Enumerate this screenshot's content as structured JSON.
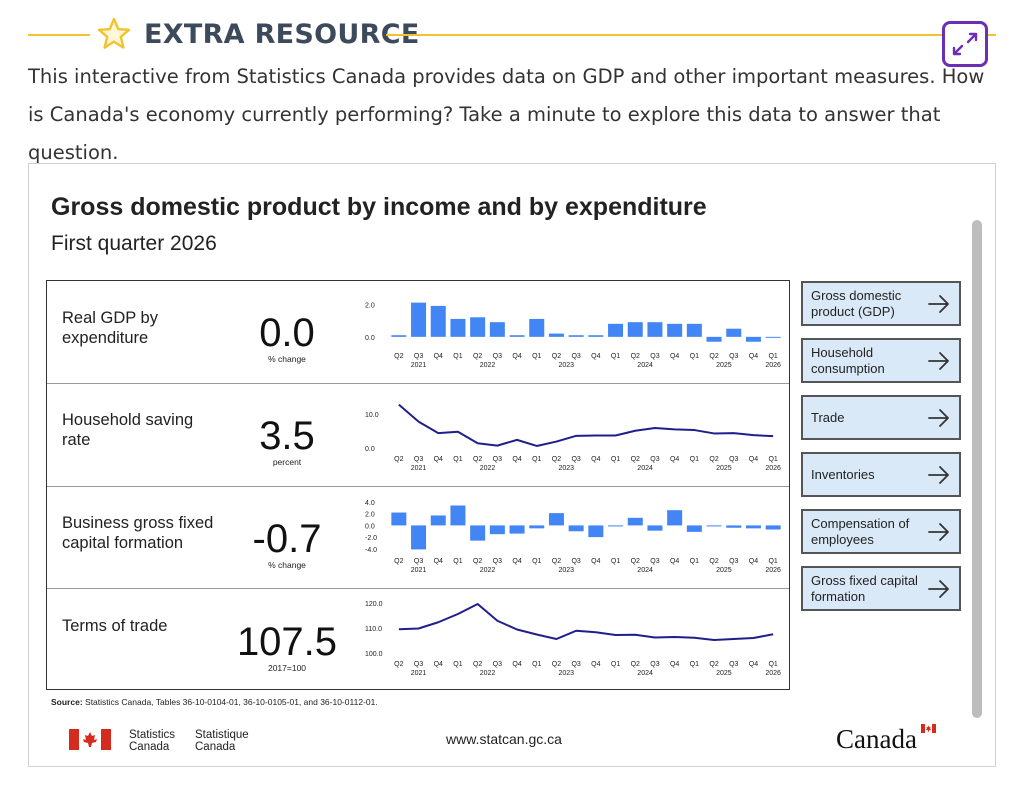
{
  "header": {
    "title": "EXTRA RESOURCE",
    "icons": {
      "star": "star-icon",
      "expand": "collapse-arrows-icon"
    },
    "colors": {
      "rule": "#f2c230",
      "expand_border": "#6b2fb3"
    }
  },
  "intro": "This interactive from Statistics Canada provides data on GDP and other important measures. How is Canada's economy currently performing? Take a minute to explore this data to answer that question.",
  "infographic": {
    "title": "Gross domestic product by income and by expenditure",
    "subtitle": "First quarter 2026",
    "metrics": [
      {
        "label": "Real GDP by expenditure",
        "value": "0.0",
        "unit": "% change"
      },
      {
        "label": "Household saving rate",
        "value": "3.5",
        "unit": "percent"
      },
      {
        "label": "Business gross fixed capital formation",
        "value": "-0.7",
        "unit": "% change"
      },
      {
        "label": "Terms of trade",
        "value": "107.5",
        "unit": "2017=100"
      }
    ],
    "nav_buttons": [
      {
        "label": "Gross domestic product (GDP)"
      },
      {
        "label": "Household consumption"
      },
      {
        "label": "Trade"
      },
      {
        "label": "Inventories"
      },
      {
        "label": "Compensation of employees"
      },
      {
        "label": "Gross fixed capital formation"
      }
    ],
    "source_label": "Source:",
    "source_text": "Statistics Canada, Tables 36-10-0104-01, 36-10-0105-01, and 36-10-0112-01.",
    "footer": {
      "agency_en": [
        "Statistics",
        "Canada"
      ],
      "agency_fr": [
        "Statistique",
        "Canada"
      ],
      "url": "www.statcan.gc.ca",
      "wordmark": "Canada"
    }
  },
  "chart_data": [
    {
      "type": "bar",
      "color": "#4285f4",
      "categories": [
        "Q2",
        "Q3",
        "Q4",
        "Q1",
        "Q2",
        "Q3",
        "Q4",
        "Q1",
        "Q2",
        "Q3",
        "Q4",
        "Q1",
        "Q2",
        "Q3",
        "Q4",
        "Q1",
        "Q2",
        "Q3",
        "Q4",
        "Q1"
      ],
      "year_labels": [
        {
          "text": "2021",
          "at": 1
        },
        {
          "text": "2022",
          "at": 4.5
        },
        {
          "text": "2023",
          "at": 8.5
        },
        {
          "text": "2024",
          "at": 12.5
        },
        {
          "text": "2025",
          "at": 16.5
        },
        {
          "text": "2026",
          "at": 19
        }
      ],
      "values": [
        0.1,
        2.1,
        1.9,
        1.1,
        1.2,
        0.9,
        0.1,
        1.1,
        0.2,
        0.1,
        0.1,
        0.8,
        0.9,
        0.9,
        0.8,
        0.8,
        -0.3,
        0.5,
        -0.3,
        0.0
      ],
      "yticks": [
        {
          "v": 2.0,
          "t": "2.0"
        },
        {
          "v": 0.0,
          "t": "0.0"
        }
      ],
      "ylim": [
        -0.5,
        2.2
      ]
    },
    {
      "type": "line",
      "color": "#1f1f8c",
      "categories": [
        "Q2",
        "Q3",
        "Q4",
        "Q1",
        "Q2",
        "Q3",
        "Q4",
        "Q1",
        "Q2",
        "Q3",
        "Q4",
        "Q1",
        "Q2",
        "Q3",
        "Q4",
        "Q1",
        "Q2",
        "Q3",
        "Q4",
        "Q1"
      ],
      "year_labels": [
        {
          "text": "2021",
          "at": 1
        },
        {
          "text": "2022",
          "at": 4.5
        },
        {
          "text": "2023",
          "at": 8.5
        },
        {
          "text": "2024",
          "at": 12.5
        },
        {
          "text": "2025",
          "at": 16.5
        },
        {
          "text": "2026",
          "at": 19
        }
      ],
      "values": [
        12.8,
        7.8,
        4.4,
        4.8,
        1.4,
        0.7,
        2.4,
        0.6,
        1.9,
        3.6,
        3.7,
        3.7,
        5.1,
        5.9,
        5.5,
        5.3,
        4.3,
        4.4,
        3.8,
        3.5
      ],
      "yticks": [
        {
          "v": 10.0,
          "t": "10.0"
        },
        {
          "v": 0.0,
          "t": "0.0"
        }
      ],
      "ylim": [
        0,
        13
      ]
    },
    {
      "type": "bar",
      "color": "#4285f4",
      "categories": [
        "Q2",
        "Q3",
        "Q4",
        "Q1",
        "Q2",
        "Q3",
        "Q4",
        "Q1",
        "Q2",
        "Q3",
        "Q4",
        "Q1",
        "Q2",
        "Q3",
        "Q4",
        "Q1",
        "Q2",
        "Q3",
        "Q4",
        "Q1"
      ],
      "year_labels": [
        {
          "text": "2021",
          "at": 1
        },
        {
          "text": "2022",
          "at": 4.5
        },
        {
          "text": "2023",
          "at": 8.5
        },
        {
          "text": "2024",
          "at": 12.5
        },
        {
          "text": "2025",
          "at": 16.5
        },
        {
          "text": "2026",
          "at": 19
        }
      ],
      "values": [
        2.2,
        -4.1,
        1.7,
        3.4,
        -2.6,
        -1.5,
        -1.4,
        -0.5,
        2.1,
        -1.0,
        -2.0,
        -0.1,
        1.3,
        -0.9,
        2.6,
        -1.1,
        -0.1,
        -0.4,
        -0.5,
        -0.7
      ],
      "yticks": [
        {
          "v": 4.0,
          "t": "4.0"
        },
        {
          "v": 2.0,
          "t": "2.0"
        },
        {
          "v": 0.0,
          "t": "0.0"
        },
        {
          "v": -2.0,
          "t": "-2.0"
        },
        {
          "v": -4.0,
          "t": "-4.0"
        }
      ],
      "ylim": [
        -4.2,
        4.0
      ]
    },
    {
      "type": "line",
      "color": "#1f1f8c",
      "categories": [
        "Q2",
        "Q3",
        "Q4",
        "Q1",
        "Q2",
        "Q3",
        "Q4",
        "Q1",
        "Q2",
        "Q3",
        "Q4",
        "Q1",
        "Q2",
        "Q3",
        "Q4",
        "Q1",
        "Q2",
        "Q3",
        "Q4",
        "Q1"
      ],
      "year_labels": [
        {
          "text": "2021",
          "at": 1
        },
        {
          "text": "2022",
          "at": 4.5
        },
        {
          "text": "2023",
          "at": 8.5
        },
        {
          "text": "2024",
          "at": 12.5
        },
        {
          "text": "2025",
          "at": 16.5
        },
        {
          "text": "2026",
          "at": 19
        }
      ],
      "values": [
        109.5,
        109.8,
        112.3,
        115.6,
        119.6,
        112.9,
        109.4,
        107.4,
        105.6,
        108.9,
        108.3,
        107.2,
        107.3,
        106.2,
        106.4,
        106.1,
        105.2,
        105.6,
        106.0,
        107.5
      ],
      "yticks": [
        {
          "v": 120.0,
          "t": "120.0"
        },
        {
          "v": 110.0,
          "t": "110.0"
        },
        {
          "v": 100.0,
          "t": "100.0"
        }
      ],
      "ylim": [
        100,
        120
      ]
    }
  ]
}
